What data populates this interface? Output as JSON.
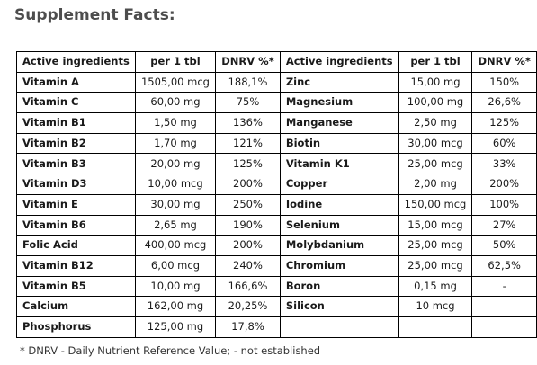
{
  "title": "Supplement Facts:",
  "headers": [
    "Active ingredients",
    "per 1 tbl",
    "DNRV %*",
    "Active ingredients",
    "per 1 tbl",
    "DNRV %*"
  ],
  "rows": [
    [
      "Vitamin A",
      "1505,00 mcg",
      "188,1%",
      "Zinc",
      "15,00 mg",
      "150%"
    ],
    [
      "Vitamin C",
      "60,00 mg",
      "75%",
      "Magnesium",
      "100,00 mg",
      "26,6%"
    ],
    [
      "Vitamin B1",
      "1,50 mg",
      "136%",
      "Manganese",
      "2,50 mg",
      "125%"
    ],
    [
      "Vitamin B2",
      "1,70 mg",
      "121%",
      "Biotin",
      "30,00 mcg",
      "60%"
    ],
    [
      "Vitamin B3",
      "20,00 mg",
      "125%",
      "Vitamin K1",
      "25,00 mcg",
      "33%"
    ],
    [
      "Vitamin D3",
      "10,00 mcg",
      "200%",
      "Copper",
      "2,00 mg",
      "200%"
    ],
    [
      "Vitamin E",
      "30,00 mg",
      "250%",
      "Iodine",
      "150,00 mcg",
      "100%"
    ],
    [
      "Vitamin B6",
      "2,65 mg",
      "190%",
      "Selenium",
      "15,00 mcg",
      "27%"
    ],
    [
      "Folic Acid",
      "400,00 mcg",
      "200%",
      "Molybdanium",
      "25,00 mcg",
      "50%"
    ],
    [
      "Vitamin B12",
      "6,00 mcg",
      "240%",
      "Chromium",
      "25,00 mcg",
      "62,5%"
    ],
    [
      "Vitamin B5",
      "10,00 mg",
      "166,6%",
      "Boron",
      "0,15 mg",
      "-"
    ],
    [
      "Calcium",
      "162,00 mg",
      "20,25%",
      "Silicon",
      "10 mcg",
      ""
    ],
    [
      "Phosphorus",
      "125,00 mg",
      "17,8%",
      "",
      "",
      ""
    ]
  ],
  "footnote": "* DNRV - Daily Nutrient Reference Value; - not established"
}
